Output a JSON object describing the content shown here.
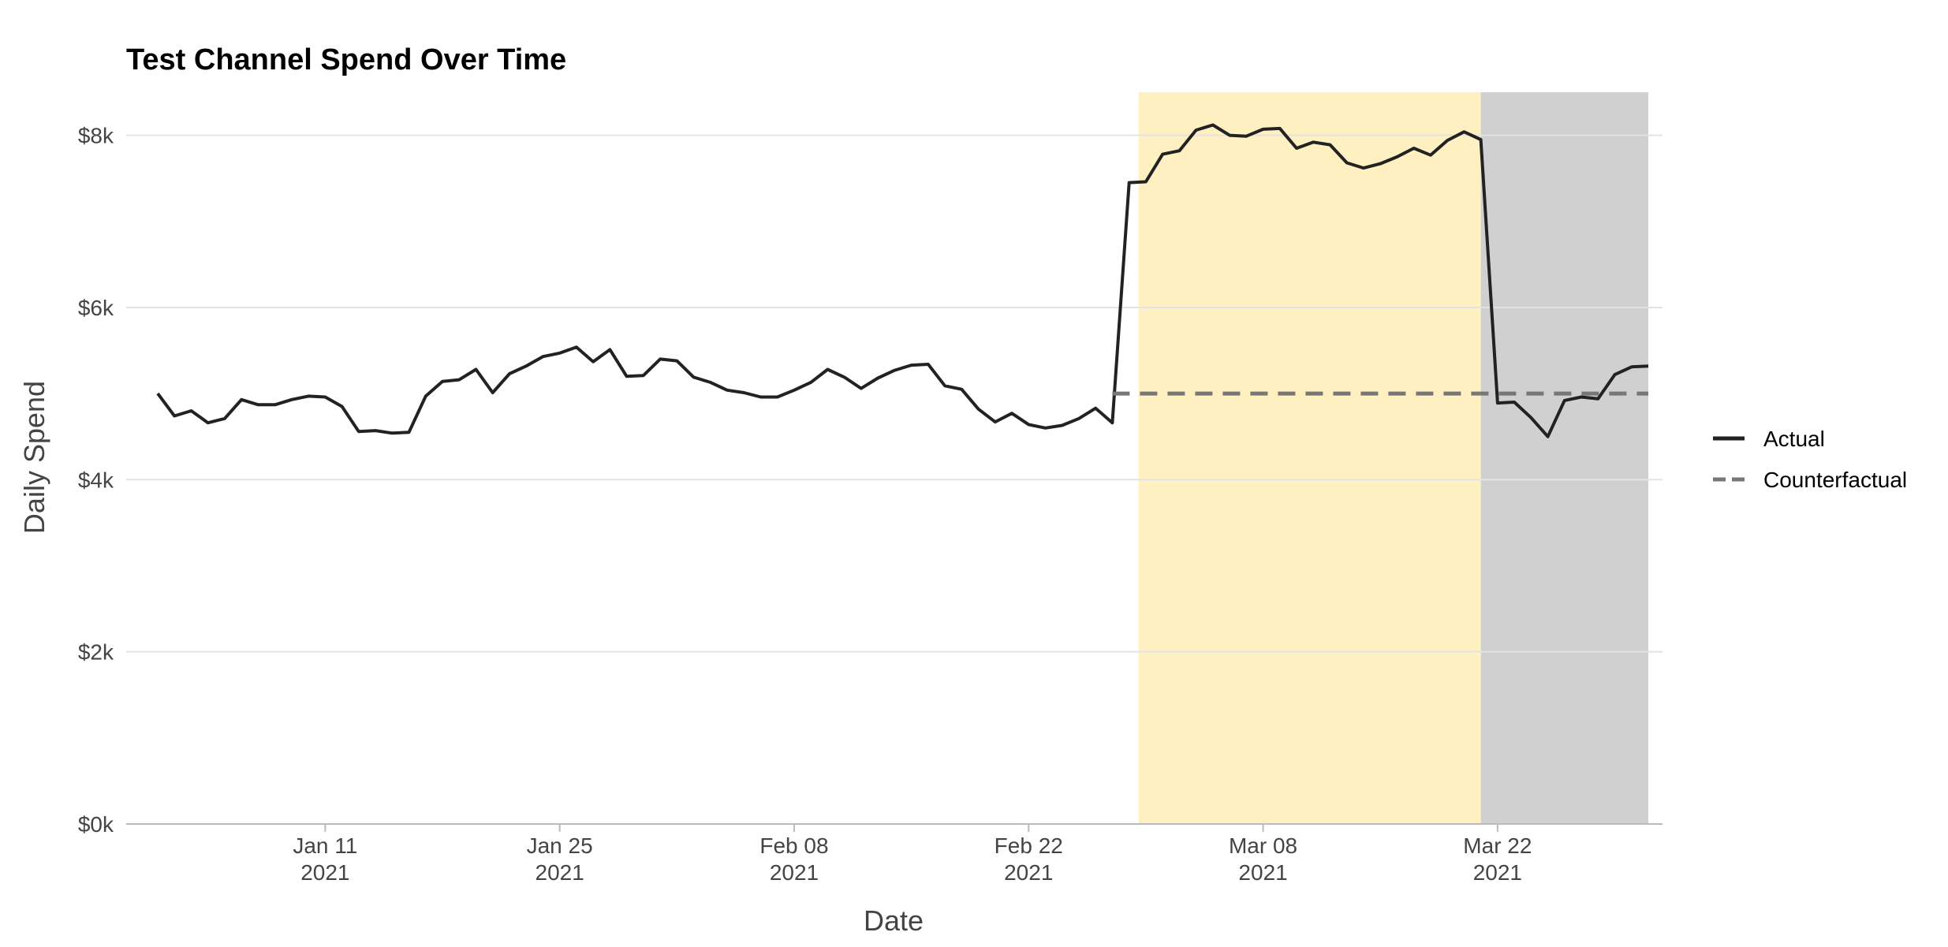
{
  "chart_data": {
    "type": "line",
    "title": "Test Channel Spend Over Time",
    "xlabel": "Date",
    "ylabel": "Daily Spend",
    "xlim": [
      "2021-01-01",
      "2021-03-31"
    ],
    "ylim": [
      0,
      8500
    ],
    "y_ticks": [
      0,
      2000,
      4000,
      6000,
      8000
    ],
    "y_tick_labels": [
      "$0k",
      "$2k",
      "$4k",
      "$6k",
      "$8k"
    ],
    "x_ticks": [
      "2021-01-11",
      "2021-01-25",
      "2021-02-08",
      "2021-02-22",
      "2021-03-08",
      "2021-03-22"
    ],
    "x_tick_labels": [
      {
        "line1": "Jan 11",
        "line2": "2021"
      },
      {
        "line1": "Jan 25",
        "line2": "2021"
      },
      {
        "line1": "Feb 08",
        "line2": "2021"
      },
      {
        "line1": "Feb 22",
        "line2": "2021"
      },
      {
        "line1": "Mar 08",
        "line2": "2021"
      },
      {
        "line1": "Mar 22",
        "line2": "2021"
      }
    ],
    "shaded_regions": [
      {
        "start": "2021-02-28",
        "end": "2021-03-21",
        "color": "#fff0c2"
      },
      {
        "start": "2021-03-21",
        "end": "2021-03-31",
        "color": "#d0d0d0"
      }
    ],
    "grid": "horizontal",
    "legend_position": "right",
    "series": [
      {
        "name": "Actual",
        "style": "solid",
        "color": "#222222",
        "x": [
          "2021-01-01",
          "2021-01-02",
          "2021-01-03",
          "2021-01-04",
          "2021-01-05",
          "2021-01-06",
          "2021-01-07",
          "2021-01-08",
          "2021-01-09",
          "2021-01-10",
          "2021-01-11",
          "2021-01-12",
          "2021-01-13",
          "2021-01-14",
          "2021-01-15",
          "2021-01-16",
          "2021-01-17",
          "2021-01-18",
          "2021-01-19",
          "2021-01-20",
          "2021-01-21",
          "2021-01-22",
          "2021-01-23",
          "2021-01-24",
          "2021-01-25",
          "2021-01-26",
          "2021-01-27",
          "2021-01-28",
          "2021-01-29",
          "2021-01-30",
          "2021-01-31",
          "2021-02-01",
          "2021-02-02",
          "2021-02-03",
          "2021-02-04",
          "2021-02-05",
          "2021-02-06",
          "2021-02-07",
          "2021-02-08",
          "2021-02-09",
          "2021-02-10",
          "2021-02-11",
          "2021-02-12",
          "2021-02-13",
          "2021-02-14",
          "2021-02-15",
          "2021-02-16",
          "2021-02-17",
          "2021-02-18",
          "2021-02-19",
          "2021-02-20",
          "2021-02-21",
          "2021-02-22",
          "2021-02-23",
          "2021-02-24",
          "2021-02-25",
          "2021-02-26",
          "2021-02-27",
          "2021-02-28",
          "2021-03-01",
          "2021-03-02",
          "2021-03-03",
          "2021-03-04",
          "2021-03-05",
          "2021-03-06",
          "2021-03-07",
          "2021-03-08",
          "2021-03-09",
          "2021-03-10",
          "2021-03-11",
          "2021-03-12",
          "2021-03-13",
          "2021-03-14",
          "2021-03-15",
          "2021-03-16",
          "2021-03-17",
          "2021-03-18",
          "2021-03-19",
          "2021-03-20",
          "2021-03-21",
          "2021-03-22",
          "2021-03-23",
          "2021-03-24",
          "2021-03-25",
          "2021-03-26",
          "2021-03-27",
          "2021-03-28",
          "2021-03-29",
          "2021-03-30",
          "2021-03-31"
        ],
        "values": [
          5000,
          4740,
          4800,
          4660,
          4710,
          4930,
          4870,
          4870,
          4930,
          4970,
          4960,
          4850,
          4560,
          4570,
          4540,
          4550,
          4970,
          5140,
          5160,
          5280,
          5010,
          5230,
          5320,
          5430,
          5470,
          5540,
          5370,
          5510,
          5200,
          5210,
          5400,
          5380,
          5190,
          5130,
          5040,
          5010,
          4960,
          4960,
          5040,
          5130,
          5280,
          5190,
          5060,
          5180,
          5270,
          5330,
          5340,
          5090,
          5050,
          4820,
          4670,
          4770,
          4640,
          4600,
          4630,
          4710,
          4830,
          4660,
          7450,
          7460,
          7780,
          7820,
          8060,
          8120,
          8000,
          7990,
          8070,
          8080,
          7850,
          7920,
          7890,
          7680,
          7620,
          7670,
          7750,
          7850,
          7770,
          7940,
          8040,
          7950,
          4890,
          4900,
          4720,
          4500,
          4920,
          4960,
          4940,
          5220,
          5310,
          5320
        ]
      },
      {
        "name": "Counterfactual",
        "style": "dashed",
        "color": "#777777",
        "x": [
          "2021-02-27",
          "2021-03-31"
        ],
        "values": [
          5000,
          5000
        ]
      }
    ]
  }
}
